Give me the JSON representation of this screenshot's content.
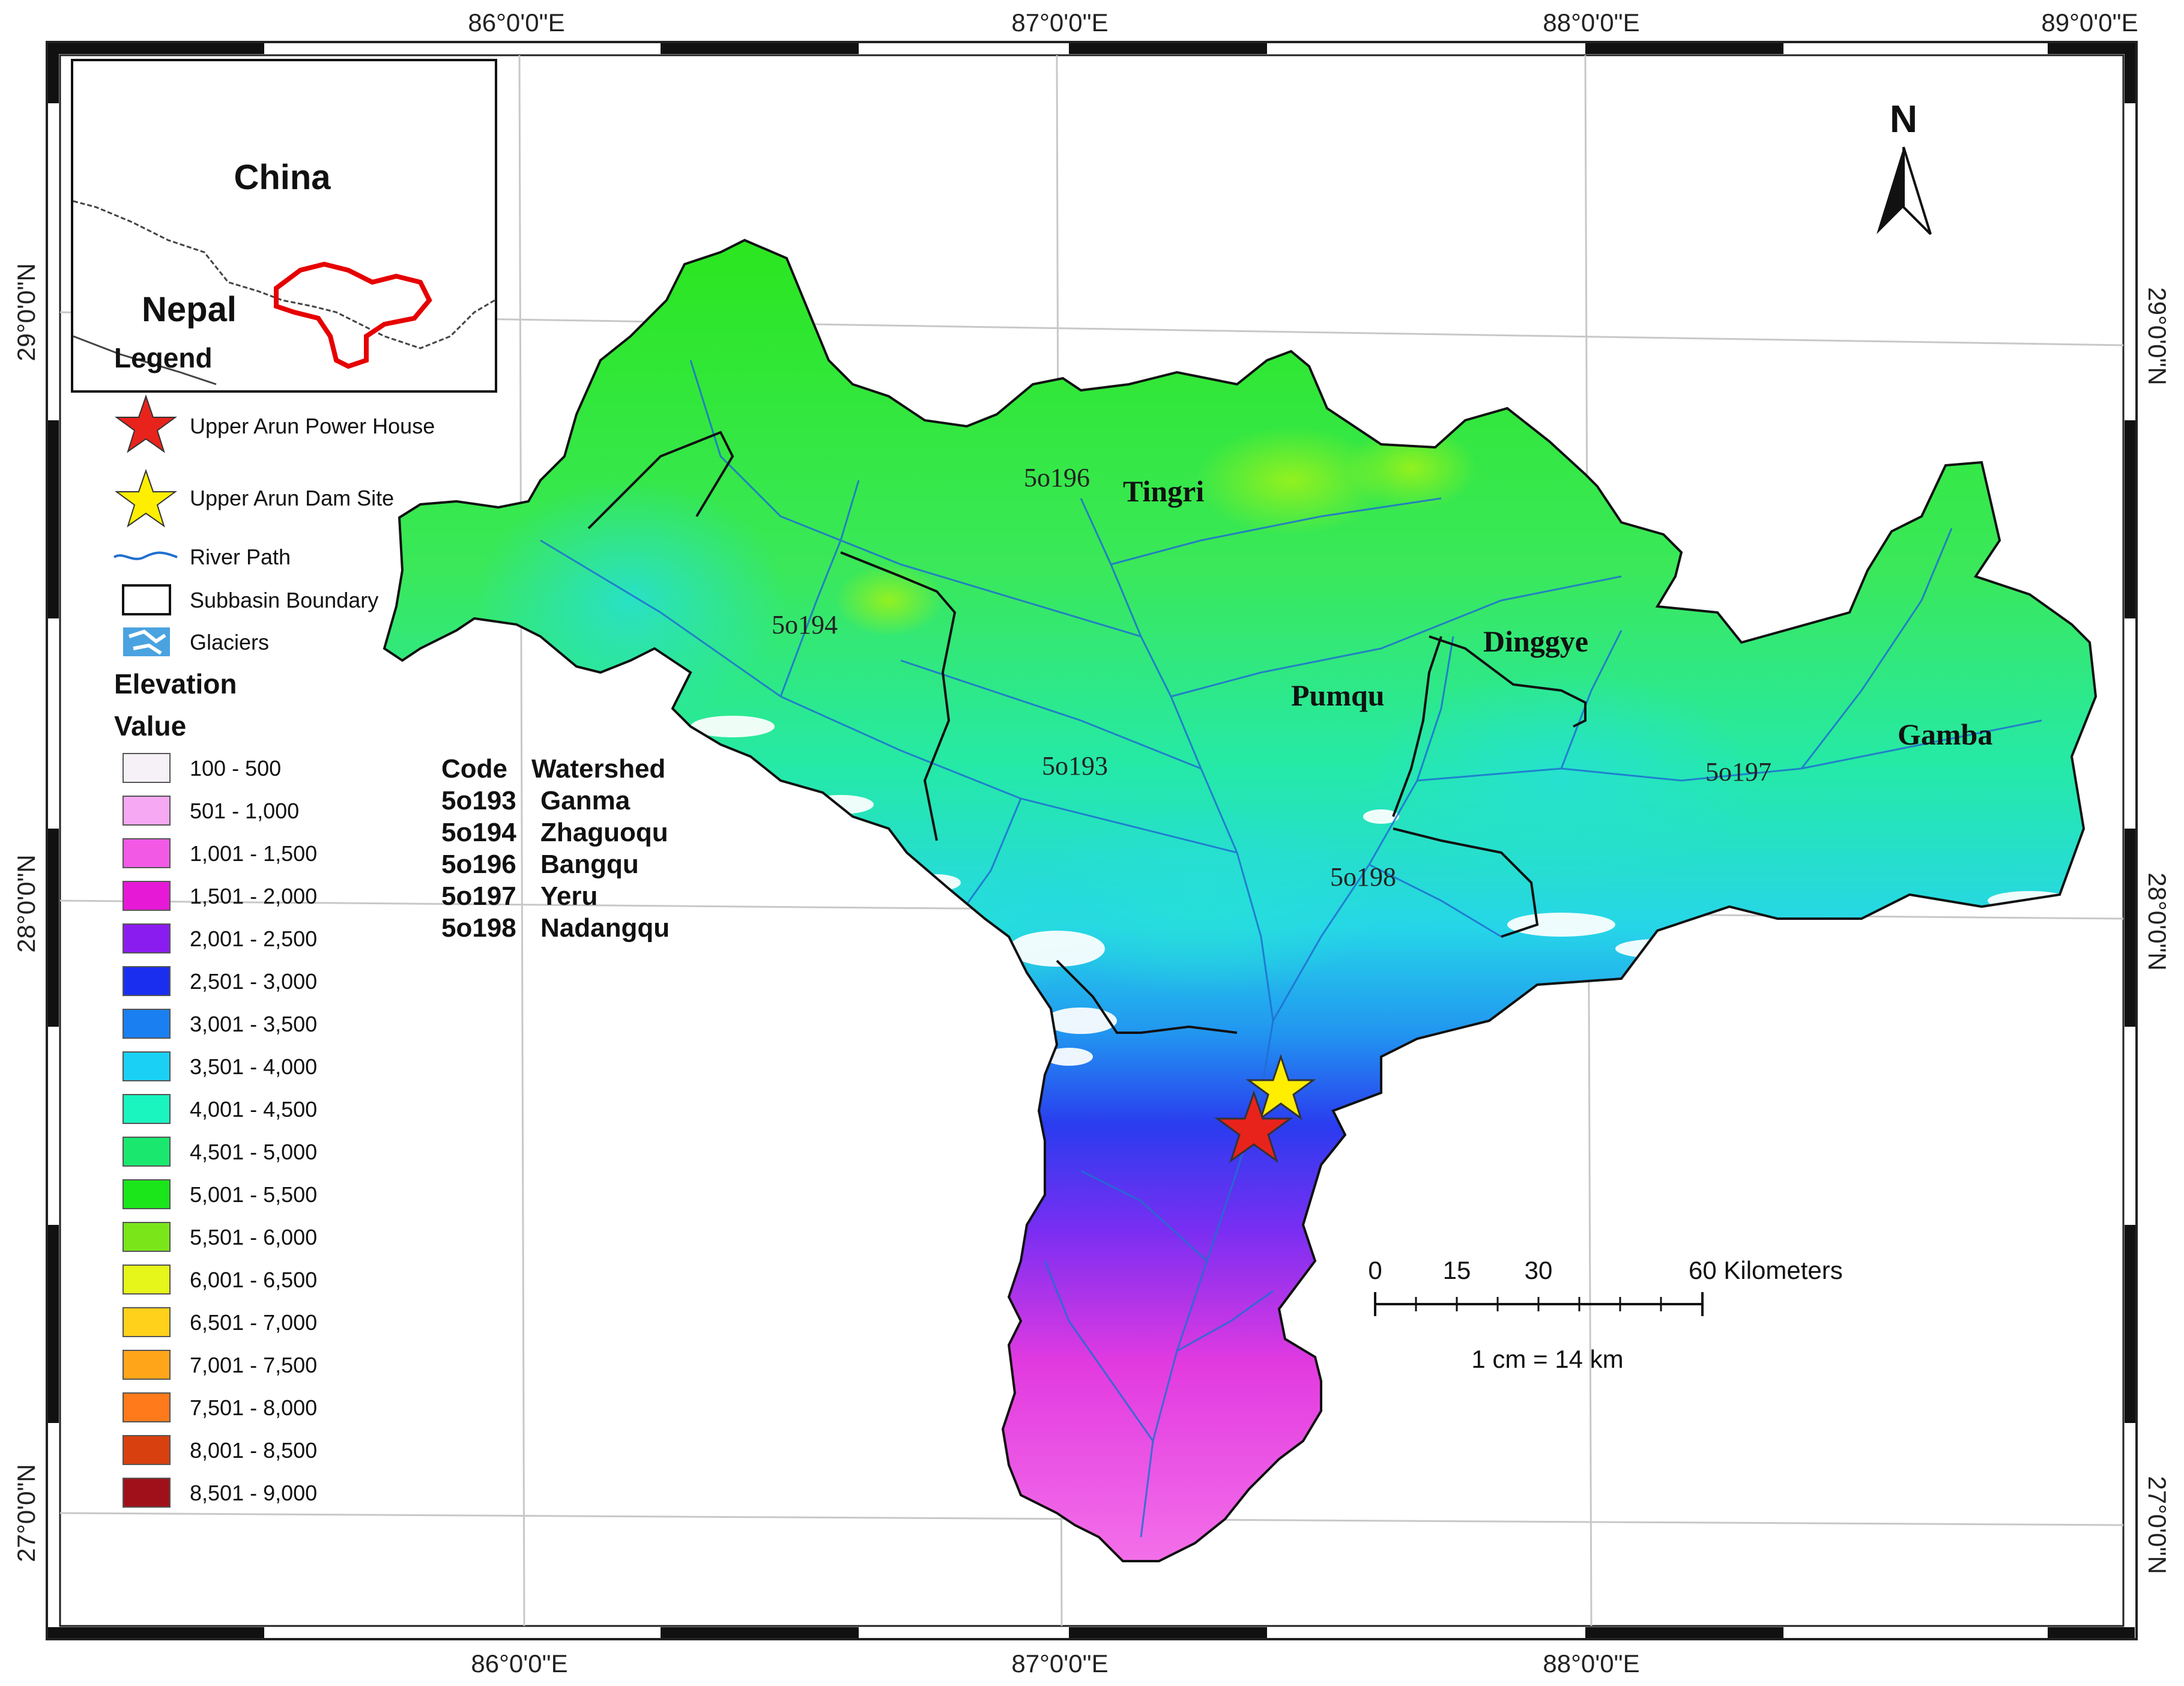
{
  "coords": {
    "top_lon": [
      "86°0'0\"E",
      "87°0'0\"E",
      "88°0'0\"E",
      "89°0'0\"E"
    ],
    "bottom_lon": [
      "86°0'0\"E",
      "87°0'0\"E",
      "88°0'0\"E"
    ],
    "left_lat": [
      "29°0'0\"N",
      "28°0'0\"N",
      "27°0'0\"N"
    ],
    "right_lat": [
      "29°0'0\"N",
      "28°0'0\"N",
      "27°0'0\"N"
    ]
  },
  "inset": {
    "china": "China",
    "nepal": "Nepal"
  },
  "legend": {
    "title": "Legend",
    "items": [
      "Upper Arun Power House",
      "Upper Arun Dam Site",
      "River Path",
      "Subbasin Boundary",
      "Glaciers"
    ],
    "elevation_title": "Elevation",
    "value_title": "Value",
    "elevation_classes": [
      {
        "label": "100 - 500",
        "color": "#f5f1f7"
      },
      {
        "label": "501 - 1,000",
        "color": "#f7a8f2"
      },
      {
        "label": "1,001 - 1,500",
        "color": "#f25ae6"
      },
      {
        "label": "1,501 - 2,000",
        "color": "#e619d6"
      },
      {
        "label": "2,001 - 2,500",
        "color": "#8b1cf0"
      },
      {
        "label": "2,501 - 3,000",
        "color": "#1a2ef0"
      },
      {
        "label": "3,001 - 3,500",
        "color": "#1a7ff0"
      },
      {
        "label": "3,501 - 4,000",
        "color": "#1ad1f5"
      },
      {
        "label": "4,001 - 4,500",
        "color": "#1af5c0"
      },
      {
        "label": "4,501 - 5,000",
        "color": "#1ae86e"
      },
      {
        "label": "5,001 - 5,500",
        "color": "#1ae61a"
      },
      {
        "label": "5,501 - 6,000",
        "color": "#7ae61a"
      },
      {
        "label": "6,001 - 6,500",
        "color": "#e6f51a"
      },
      {
        "label": "6,501 - 7,000",
        "color": "#ffd11a"
      },
      {
        "label": "7,001 - 7,500",
        "color": "#ffa51a"
      },
      {
        "label": "7,501 - 8,000",
        "color": "#ff7a1a"
      },
      {
        "label": "8,001 - 8,500",
        "color": "#d9400f"
      },
      {
        "label": "8,501 - 9,000",
        "color": "#a0101a"
      }
    ]
  },
  "watershed_table": {
    "header_code": "Code",
    "header_watershed": "Watershed",
    "rows": [
      {
        "code": "5o193",
        "name": "Ganma"
      },
      {
        "code": "5o194",
        "name": "Zhaguoqu"
      },
      {
        "code": "5o196",
        "name": "Bangqu"
      },
      {
        "code": "5o197",
        "name": "Yeru"
      },
      {
        "code": "5o198",
        "name": "Nadangqu"
      }
    ]
  },
  "map_labels": {
    "subbasins": [
      "Tingri",
      "Dinggye",
      "Pumqu",
      "Gamba"
    ],
    "codes": [
      "5o196",
      "5o194",
      "5o193",
      "5o198",
      "5o197"
    ]
  },
  "north": "N",
  "scale_bar": {
    "ticks": [
      "0",
      "15",
      "30",
      "60 Kilometers"
    ],
    "ratio": "1 cm = 14 km"
  },
  "colors": {
    "dam_site": "#ffee00",
    "power_house": "#e8231c",
    "river": "#1f6fd1",
    "inset_basin": "#e60000"
  }
}
